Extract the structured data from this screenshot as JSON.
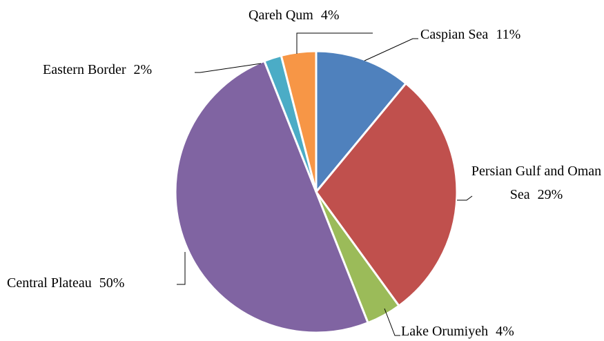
{
  "chart_data": {
    "type": "pie",
    "categories": [
      "Caspian Sea",
      "Persian Gulf and Oman Sea",
      "Lake Orumiyeh",
      "Central Plateau",
      "Eastern Border",
      "Qareh Qum"
    ],
    "values": [
      11,
      29,
      4,
      50,
      2,
      4
    ],
    "value_labels": [
      "11%",
      "29%",
      "4%",
      "50%",
      "2%",
      "4%"
    ],
    "colors": [
      "#4f81bd",
      "#c0504d",
      "#9bbb59",
      "#8064a2",
      "#4bacc6",
      "#f79646"
    ]
  }
}
